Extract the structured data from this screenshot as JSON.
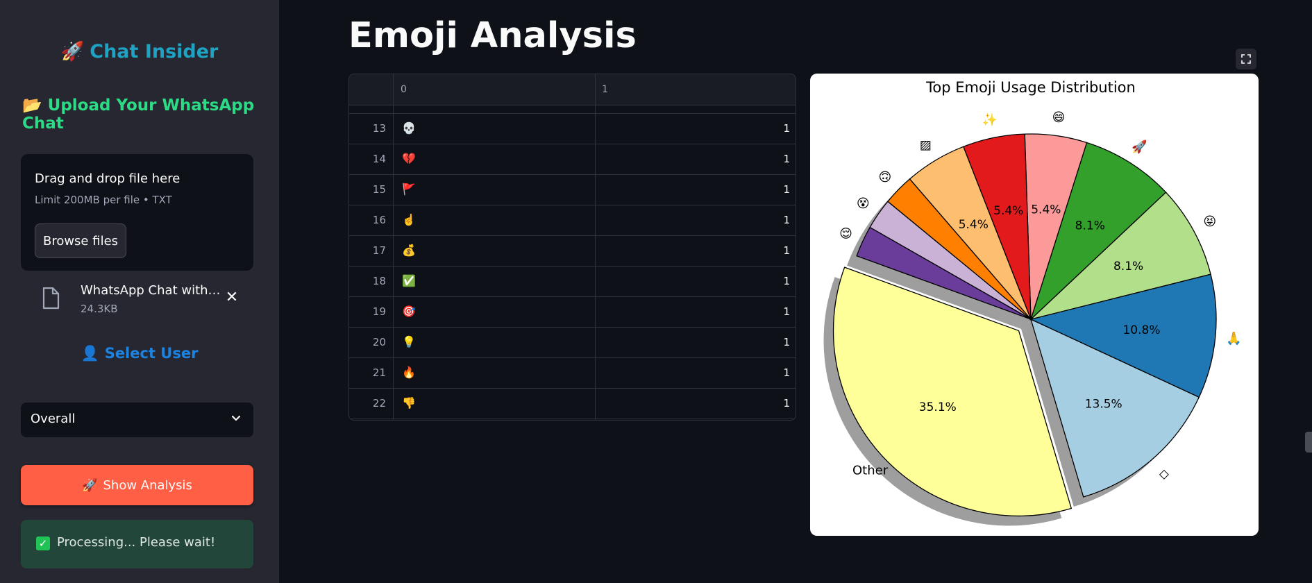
{
  "sidebar": {
    "brand_emoji": "🚀",
    "brand": "Chat Insider",
    "upload_emoji": "📂",
    "upload_title": "Upload Your WhatsApp Chat",
    "dropzone_title": "Drag and drop file here",
    "dropzone_limit": "Limit 200MB per file • TXT",
    "browse_label": "Browse files",
    "file_name": "WhatsApp Chat with T...",
    "file_size": "24.3KB",
    "select_user_emoji": "👤",
    "select_user_label": "Select User",
    "select_value": "Overall",
    "show_emoji": "🚀",
    "show_label": "Show Analysis",
    "status_text": "Processing... Please wait!"
  },
  "main": {
    "title": "Emoji Analysis",
    "table": {
      "headers": [
        "",
        "0",
        "1"
      ],
      "rows": [
        {
          "idx": "13",
          "emoji": "💀",
          "count": "1"
        },
        {
          "idx": "14",
          "emoji": "💔",
          "count": "1"
        },
        {
          "idx": "15",
          "emoji": "🚩",
          "count": "1"
        },
        {
          "idx": "16",
          "emoji": "☝️",
          "count": "1"
        },
        {
          "idx": "17",
          "emoji": "💰",
          "count": "1"
        },
        {
          "idx": "18",
          "emoji": "✅",
          "count": "1"
        },
        {
          "idx": "19",
          "emoji": "🎯",
          "count": "1"
        },
        {
          "idx": "20",
          "emoji": "💡",
          "count": "1"
        },
        {
          "idx": "21",
          "emoji": "🔥",
          "count": "1"
        },
        {
          "idx": "22",
          "emoji": "👎",
          "count": "1"
        }
      ]
    }
  },
  "chart_data": {
    "type": "pie",
    "title": "Top Emoji Usage Distribution",
    "slices": [
      {
        "label": "Other",
        "value": 35.1,
        "color": "#ffff99",
        "pct_label": "35.1%",
        "exploded": true
      },
      {
        "label": "◇",
        "value": 13.5,
        "color": "#a6cee3",
        "pct_label": "13.5%"
      },
      {
        "label": "🙏",
        "value": 10.8,
        "color": "#1f78b4",
        "pct_label": "10.8%"
      },
      {
        "label": "😝",
        "value": 8.1,
        "color": "#b2df8a",
        "pct_label": "8.1%"
      },
      {
        "label": "🚀",
        "value": 8.1,
        "color": "#33a02c",
        "pct_label": "8.1%"
      },
      {
        "label": "😄",
        "value": 5.4,
        "color": "#fb9a99",
        "pct_label": "5.4%"
      },
      {
        "label": "✨",
        "value": 5.4,
        "color": "#e31a1c",
        "pct_label": "5.4%"
      },
      {
        "label": "▨",
        "value": 5.4,
        "color": "#fdbf6f",
        "pct_label": "5.4%"
      },
      {
        "label": "🙃",
        "value": 2.7,
        "color": "#ff7f00",
        "pct_label": ""
      },
      {
        "label": "😵",
        "value": 2.7,
        "color": "#cab2d6",
        "pct_label": ""
      },
      {
        "label": "😌",
        "value": 2.7,
        "color": "#6a3d9a",
        "pct_label": ""
      }
    ],
    "shadow": true
  }
}
